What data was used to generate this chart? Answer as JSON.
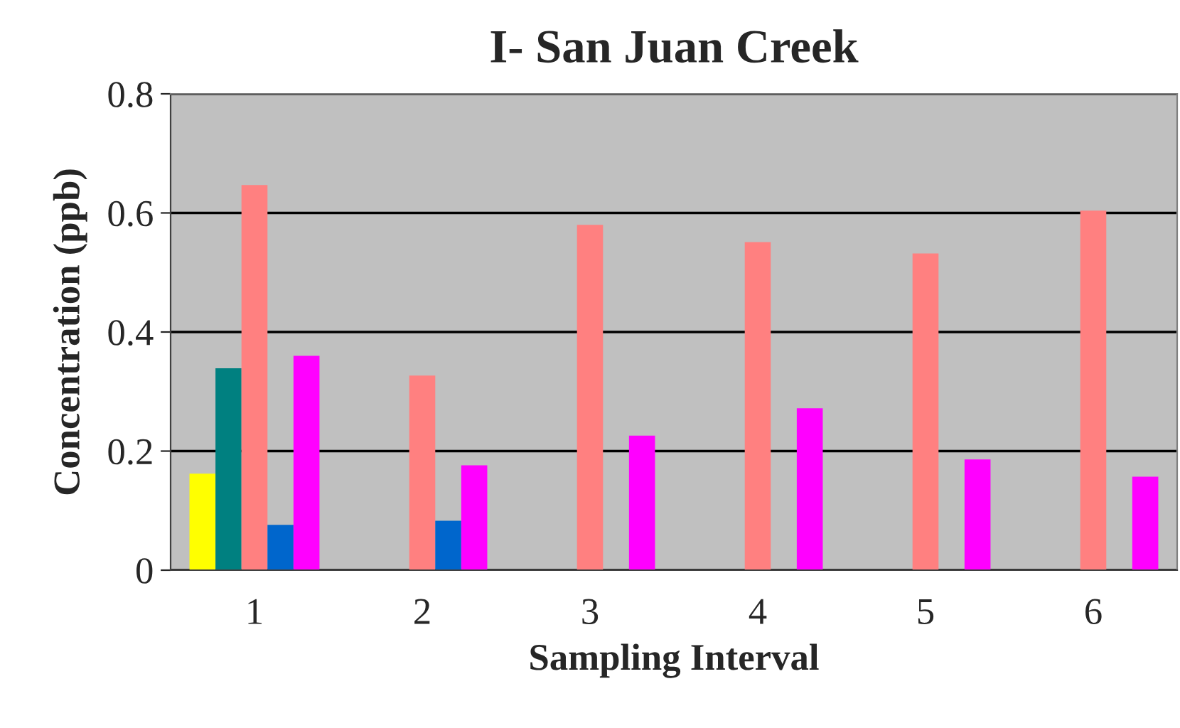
{
  "chart_data": {
    "type": "bar",
    "title": "I- San Juan Creek",
    "xlabel": "Sampling Interval",
    "ylabel": "Concentration (ppb)",
    "categories": [
      "1",
      "2",
      "3",
      "4",
      "5",
      "6"
    ],
    "series": [
      {
        "color": "#ffff00",
        "values": [
          0.162,
          null,
          null,
          null,
          null,
          null
        ]
      },
      {
        "color": "#008080",
        "values": [
          0.339,
          null,
          null,
          null,
          null,
          null
        ]
      },
      {
        "color": "#ff8080",
        "values": [
          0.647,
          0.327,
          0.58,
          0.551,
          0.532,
          0.604
        ]
      },
      {
        "color": "#0066cc",
        "values": [
          0.076,
          0.083,
          null,
          null,
          null,
          null
        ]
      },
      {
        "color": "#ff00ff",
        "values": [
          0.36,
          0.176,
          0.226,
          0.272,
          0.186,
          0.157
        ]
      }
    ],
    "ylim": [
      0,
      0.8
    ],
    "yticks": [
      0,
      0.2,
      0.4,
      0.6,
      0.8
    ],
    "grid": "y",
    "legend": false
  }
}
